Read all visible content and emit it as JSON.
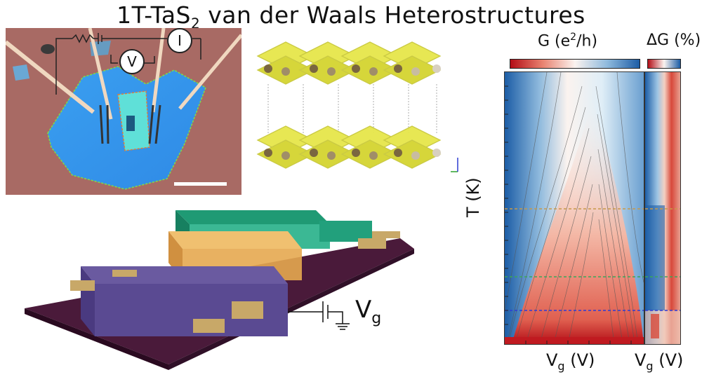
{
  "figure": {
    "title_main": "1T-TaS",
    "title_sub": "2",
    "title_rest": " van der Waals Heterostructures"
  },
  "optical_image": {
    "current_symbol": "I",
    "voltage_symbol": "V"
  },
  "device_schematic": {
    "gate_label_main": "V",
    "gate_label_sub": "g"
  },
  "heatmap": {
    "colorbar_g_label": "G (e",
    "colorbar_g_sup": "2",
    "colorbar_g_unit": "/h)",
    "colorbar_dg_label": "ΔG (%)",
    "y_label": "T (K)",
    "x_label_main_left": "V",
    "x_label_sub_left": "g",
    "x_label_unit_left": " (V)",
    "x_label_main_right": "V",
    "x_label_sub_right": "g",
    "x_label_unit_right": " (V)",
    "colors": {
      "low": "#b30d16",
      "mid": "#fbf3ef",
      "high": "#1c5da6"
    },
    "marker_lines": [
      {
        "color": "#c7994a"
      },
      {
        "color": "#3aa65a"
      },
      {
        "color": "#2d3ad6"
      }
    ]
  }
}
